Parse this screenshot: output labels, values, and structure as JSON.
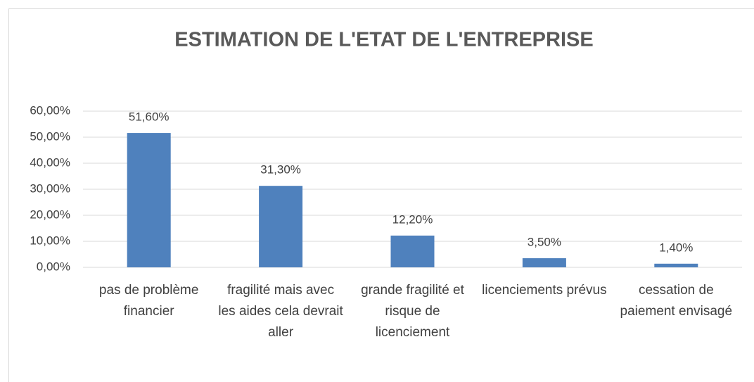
{
  "chart_data": {
    "type": "bar",
    "title": "ESTIMATION DE L'ETAT DE L'ENTREPRISE",
    "categories": [
      "pas de problème financier",
      "fragilité mais avec les aides cela devrait aller",
      "grande fragilité et risque de licenciement",
      "licenciements prévus",
      "cessation de paiement envisagé"
    ],
    "values": [
      51.6,
      31.3,
      12.2,
      3.5,
      1.4
    ],
    "value_labels": [
      "51,60%",
      "31,30%",
      "12,20%",
      "3,50%",
      "1,40%"
    ],
    "color": "#4f81bd",
    "ylim": [
      0,
      60
    ],
    "yticks": [
      {
        "value": 0,
        "label": "0,00%"
      },
      {
        "value": 10,
        "label": "10,00%"
      },
      {
        "value": 20,
        "label": "20,00%"
      },
      {
        "value": 30,
        "label": "30,00%"
      },
      {
        "value": 40,
        "label": "40,00%"
      },
      {
        "value": 50,
        "label": "50,00%"
      },
      {
        "value": 60,
        "label": "60,00%"
      }
    ],
    "grid": true
  }
}
